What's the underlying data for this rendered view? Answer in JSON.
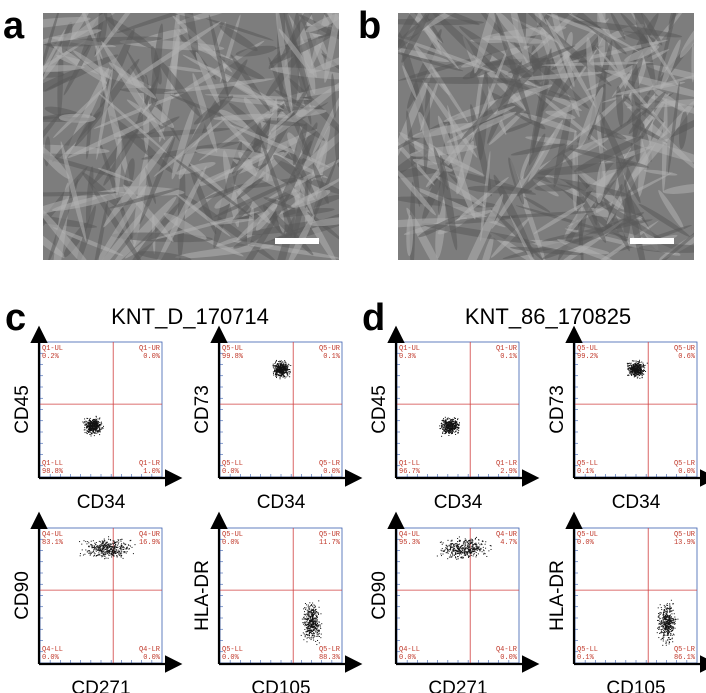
{
  "panels": [
    {
      "letter": "a",
      "title": "KNT_D_170714"
    },
    {
      "letter": "b",
      "title": "KNT_86_170825"
    },
    {
      "letter": "c",
      "title": "KNT_D_170714",
      "plots": [
        {
          "y_label": "CD45",
          "x_label": "CD34",
          "quadrants": [
            {
              "label": "Q1-UL",
              "value": "0.2%"
            },
            {
              "label": "Q1-UR",
              "value": "0.0%"
            },
            {
              "label": "Q1-LL",
              "value": "98.8%"
            },
            {
              "label": "Q1-LR",
              "value": "1.0%"
            }
          ]
        },
        {
          "y_label": "CD73",
          "x_label": "CD34",
          "quadrants": [
            {
              "label": "Q5-UL",
              "value": "99.8%"
            },
            {
              "label": "Q5-UR",
              "value": "0.1%"
            },
            {
              "label": "Q5-LL",
              "value": "0.0%"
            },
            {
              "label": "Q5-LR",
              "value": "0.0%"
            }
          ]
        },
        {
          "y_label": "CD90",
          "x_label": "CD271",
          "quadrants": [
            {
              "label": "Q4-UL",
              "value": "83.1%"
            },
            {
              "label": "Q4-UR",
              "value": "16.9%"
            },
            {
              "label": "Q4-LL",
              "value": "0.0%"
            },
            {
              "label": "Q4-LR",
              "value": "0.0%"
            }
          ]
        },
        {
          "y_label": "HLA-DR",
          "x_label": "CD105",
          "quadrants": [
            {
              "label": "Q5-UL",
              "value": "0.0%"
            },
            {
              "label": "Q5-UR",
              "value": "11.7%"
            },
            {
              "label": "Q5-LL",
              "value": "0.0%"
            },
            {
              "label": "Q5-LR",
              "value": "88.3%"
            }
          ]
        }
      ]
    },
    {
      "letter": "d",
      "title": "KNT_86_170825",
      "plots": [
        {
          "y_label": "CD45",
          "x_label": "CD34",
          "quadrants": [
            {
              "label": "Q1-UL",
              "value": "0.3%"
            },
            {
              "label": "Q1-UR",
              "value": "0.1%"
            },
            {
              "label": "Q1-LL",
              "value": "96.7%"
            },
            {
              "label": "Q1-LR",
              "value": "2.9%"
            }
          ]
        },
        {
          "y_label": "CD73",
          "x_label": "CD34",
          "quadrants": [
            {
              "label": "Q5-UL",
              "value": "99.2%"
            },
            {
              "label": "Q5-UR",
              "value": "0.6%"
            },
            {
              "label": "Q5-LL",
              "value": "0.1%"
            },
            {
              "label": "Q5-LR",
              "value": "0.0%"
            }
          ]
        },
        {
          "y_label": "CD90",
          "x_label": "CD271",
          "quadrants": [
            {
              "label": "Q4-UL",
              "value": "95.3%"
            },
            {
              "label": "Q4-UR",
              "value": "4.7%"
            },
            {
              "label": "Q4-LL",
              "value": "0.0%"
            },
            {
              "label": "Q4-LR",
              "value": "0.0%"
            }
          ]
        },
        {
          "y_label": "HLA-DR",
          "x_label": "CD105",
          "quadrants": [
            {
              "label": "Q5-UL",
              "value": "0.0%"
            },
            {
              "label": "Q5-UR",
              "value": "13.9%"
            },
            {
              "label": "Q5-LL",
              "value": "0.1%"
            },
            {
              "label": "Q5-LR",
              "value": "86.1%"
            }
          ]
        }
      ]
    }
  ]
}
